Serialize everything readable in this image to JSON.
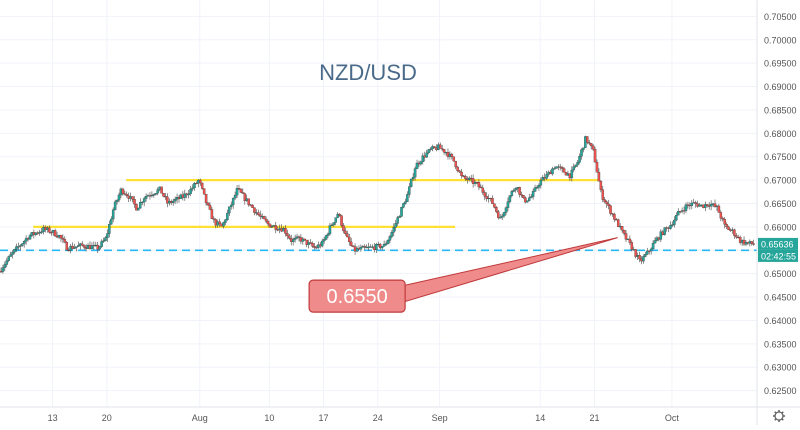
{
  "chart_data": {
    "type": "candlestick",
    "title": "NZD/USD",
    "y_axis": {
      "ticks": [
        0.705,
        0.7,
        0.695,
        0.69,
        0.685,
        0.68,
        0.675,
        0.67,
        0.665,
        0.66,
        0.655,
        0.65,
        0.645,
        0.64,
        0.635,
        0.63,
        0.625
      ],
      "tick_labels": [
        "0.70500",
        "0.70000",
        "0.69500",
        "0.69000",
        "0.68500",
        "0.68000",
        "0.67500",
        "0.67000",
        "0.66500",
        "0.66000",
        "0.65500",
        "0.65000",
        "0.64500",
        "0.64000",
        "0.63500",
        "0.63000",
        "0.62500"
      ],
      "ylim": [
        0.6215,
        0.7085
      ]
    },
    "x_axis": {
      "ticks": [
        {
          "label": "13",
          "day": 13
        },
        {
          "label": "20",
          "day": 20
        },
        {
          "label": "Aug",
          "day": 32
        },
        {
          "label": "10",
          "day": 41
        },
        {
          "label": "17",
          "day": 48
        },
        {
          "label": "24",
          "day": 55
        },
        {
          "label": "Sep",
          "day": 63
        },
        {
          "label": "14",
          "day": 76
        },
        {
          "label": "21",
          "day": 83
        },
        {
          "label": "Oct",
          "day": 93
        }
      ],
      "xlim": [
        6.2,
        104
      ]
    },
    "path": [
      [
        6.2,
        0.6505
      ],
      [
        8,
        0.6545
      ],
      [
        10,
        0.658
      ],
      [
        12,
        0.6595
      ],
      [
        13,
        0.659
      ],
      [
        14,
        0.658
      ],
      [
        15,
        0.6555
      ],
      [
        17,
        0.656
      ],
      [
        19,
        0.6555
      ],
      [
        20,
        0.6575
      ],
      [
        21,
        0.664
      ],
      [
        22,
        0.668
      ],
      [
        23,
        0.6665
      ],
      [
        24,
        0.664
      ],
      [
        25,
        0.6665
      ],
      [
        27,
        0.668
      ],
      [
        28,
        0.665
      ],
      [
        30,
        0.6665
      ],
      [
        31,
        0.668
      ],
      [
        32,
        0.67
      ],
      [
        33,
        0.665
      ],
      [
        34,
        0.661
      ],
      [
        35,
        0.66
      ],
      [
        36,
        0.664
      ],
      [
        37,
        0.668
      ],
      [
        38,
        0.666
      ],
      [
        39,
        0.664
      ],
      [
        40,
        0.662
      ],
      [
        41,
        0.6605
      ],
      [
        43,
        0.6595
      ],
      [
        44,
        0.657
      ],
      [
        45,
        0.6575
      ],
      [
        47,
        0.6555
      ],
      [
        48,
        0.6565
      ],
      [
        49,
        0.66
      ],
      [
        50,
        0.663
      ],
      [
        51,
        0.658
      ],
      [
        52,
        0.655
      ],
      [
        54,
        0.6555
      ],
      [
        56,
        0.656
      ],
      [
        57,
        0.659
      ],
      [
        58,
        0.663
      ],
      [
        59,
        0.667
      ],
      [
        60,
        0.673
      ],
      [
        61,
        0.675
      ],
      [
        62,
        0.6765
      ],
      [
        63,
        0.677
      ],
      [
        64,
        0.676
      ],
      [
        65,
        0.674
      ],
      [
        66,
        0.6705
      ],
      [
        67,
        0.67
      ],
      [
        68,
        0.669
      ],
      [
        70,
        0.665
      ],
      [
        71,
        0.6615
      ],
      [
        72,
        0.666
      ],
      [
        73,
        0.669
      ],
      [
        74,
        0.6655
      ],
      [
        75,
        0.6665
      ],
      [
        76,
        0.6695
      ],
      [
        77,
        0.671
      ],
      [
        78,
        0.673
      ],
      [
        79,
        0.672
      ],
      [
        80,
        0.671
      ],
      [
        81,
        0.674
      ],
      [
        82,
        0.679
      ],
      [
        83,
        0.676
      ],
      [
        84,
        0.667
      ],
      [
        85,
        0.664
      ],
      [
        86,
        0.661
      ],
      [
        87,
        0.658
      ],
      [
        88,
        0.6555
      ],
      [
        89,
        0.6525
      ],
      [
        90,
        0.6545
      ],
      [
        91,
        0.657
      ],
      [
        92,
        0.659
      ],
      [
        93,
        0.6605
      ],
      [
        94,
        0.663
      ],
      [
        95,
        0.6645
      ],
      [
        96,
        0.665
      ],
      [
        97,
        0.6645
      ],
      [
        98,
        0.665
      ],
      [
        99,
        0.664
      ],
      [
        100,
        0.66
      ],
      [
        101,
        0.659
      ],
      [
        102,
        0.657
      ],
      [
        103,
        0.6564
      ]
    ],
    "horizontal_lines": [
      {
        "price": 0.655,
        "style": "dashed",
        "color": "#29B6F6"
      },
      {
        "price": 0.67,
        "style": "solid",
        "color": "#FFE135",
        "from_day": 22.5,
        "to_day": 83.5
      },
      {
        "price": 0.66,
        "style": "solid",
        "color": "#FFE135",
        "from_day": 10.5,
        "to_day": 65
      }
    ],
    "callout": {
      "text": "0.6550",
      "box_day": 53.5,
      "box_price": 0.6452,
      "pointer_day": 86,
      "pointer_price": 0.6577
    },
    "price_label": {
      "value": "0.65636",
      "price": 0.65636
    },
    "countdown_label": {
      "value": "02:42:55"
    },
    "colors": {
      "up": "#26a69a",
      "down": "#ef5350",
      "wick": "#444444",
      "grid": "#f0f3fa",
      "axis_text": "#555555",
      "title": "#4a6a8a",
      "callout_fill": "#ef8b8b",
      "callout_stroke": "#c0393b",
      "price_label_bg": "#26a69a"
    },
    "icons": {
      "settings": "gear-icon"
    }
  }
}
